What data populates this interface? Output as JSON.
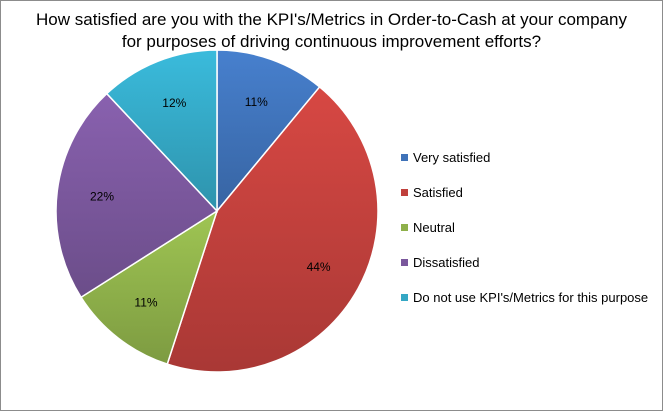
{
  "chart_data": {
    "type": "pie",
    "title": [
      "How satisfied are you with the KPI's/Metrics in Order-to-Cash at your company",
      "for purposes of driving continuous improvement efforts?"
    ],
    "categories": [
      "Very satisfied",
      "Satisfied",
      "Neutral",
      "Dissatisfied",
      "Do not use KPI's/Metrics for this purpose"
    ],
    "values": [
      11,
      44,
      11,
      22,
      12
    ],
    "labels": [
      "11%",
      "44%",
      "11%",
      "22%",
      "12%"
    ],
    "colors": [
      "#3f72b8",
      "#c0403c",
      "#8eb04a",
      "#7a579c",
      "#34a7c4"
    ],
    "start": "12 o'clock",
    "direction": "clockwise",
    "legend_position": "right"
  }
}
